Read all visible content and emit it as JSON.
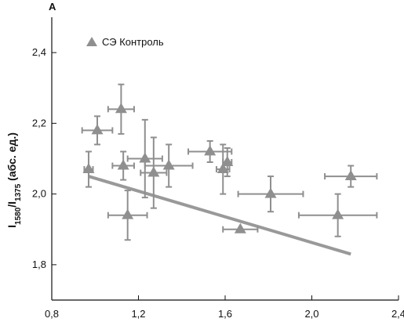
{
  "panel_label": "A",
  "chart_data": {
    "type": "scatter",
    "ylabel": {
      "part1": "I",
      "sub1": "1580",
      "part2": "/I",
      "sub2": "1375",
      "part3": " (абс. ед.)"
    },
    "xlabel": "",
    "xlim": [
      0.8,
      2.4
    ],
    "ylim": [
      1.7,
      2.5
    ],
    "xticks": [
      {
        "value": 0.8,
        "label": "0,8"
      },
      {
        "value": 1.2,
        "label": "1,2"
      },
      {
        "value": 1.6,
        "label": "1,6"
      },
      {
        "value": 2.0,
        "label": "2,0"
      },
      {
        "value": 2.4,
        "label": "2,4"
      }
    ],
    "yticks": [
      {
        "value": 1.8,
        "label": "1,8"
      },
      {
        "value": 2.0,
        "label": "2,0"
      },
      {
        "value": 2.2,
        "label": "2,2"
      },
      {
        "value": 2.4,
        "label": "2,4"
      }
    ],
    "grid": false,
    "legend": {
      "position": "top-left",
      "entries": [
        "СЭ Контроль"
      ]
    },
    "series": [
      {
        "name": "СЭ Контроль",
        "marker": "triangle",
        "color": "#8f8f8f",
        "points": [
          {
            "x": 0.97,
            "y": 2.07,
            "xerr": 0.02,
            "yerr": 0.05
          },
          {
            "x": 1.01,
            "y": 2.18,
            "xerr": 0.07,
            "yerr": 0.04
          },
          {
            "x": 1.12,
            "y": 2.24,
            "xerr": 0.06,
            "yerr": 0.07
          },
          {
            "x": 1.13,
            "y": 2.08,
            "xerr": 0.05,
            "yerr": 0.04
          },
          {
            "x": 1.15,
            "y": 1.94,
            "xerr": 0.09,
            "yerr": 0.07
          },
          {
            "x": 1.23,
            "y": 2.1,
            "xerr": 0.08,
            "yerr": 0.11
          },
          {
            "x": 1.27,
            "y": 2.06,
            "xerr": 0.06,
            "yerr": 0.1
          },
          {
            "x": 1.34,
            "y": 2.08,
            "xerr": 0.11,
            "yerr": 0.06
          },
          {
            "x": 1.53,
            "y": 2.12,
            "xerr": 0.1,
            "yerr": 0.03
          },
          {
            "x": 1.59,
            "y": 2.07,
            "xerr": 0.03,
            "yerr": 0.07
          },
          {
            "x": 1.61,
            "y": 2.09,
            "xerr": 0.02,
            "yerr": 0.04
          },
          {
            "x": 1.67,
            "y": 1.9,
            "xerr": 0.08,
            "yerr": 0.0
          },
          {
            "x": 1.81,
            "y": 2.0,
            "xerr": 0.15,
            "yerr": 0.05
          },
          {
            "x": 2.12,
            "y": 1.94,
            "xerr": 0.18,
            "yerr": 0.06
          },
          {
            "x": 2.18,
            "y": 2.05,
            "xerr": 0.12,
            "yerr": 0.03
          }
        ]
      }
    ],
    "trendline": {
      "color": "#999999",
      "x": [
        0.97,
        2.18
      ],
      "y": [
        2.05,
        1.83
      ]
    }
  }
}
